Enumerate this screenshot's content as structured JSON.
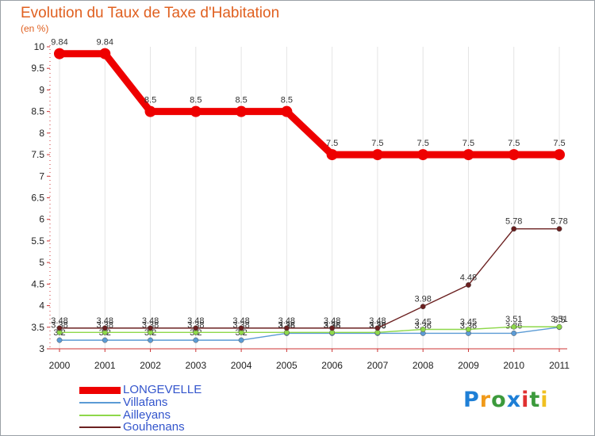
{
  "colors": {
    "title": "#e06020",
    "legend_text": "#3355cc"
  },
  "chart_data": {
    "type": "line",
    "title": "Evolution du Taux de Taxe d'Habitation",
    "subtitle": "(en %)",
    "categories": [
      "2000",
      "2001",
      "2002",
      "2003",
      "2004",
      "2005",
      "2006",
      "2007",
      "2008",
      "2009",
      "2010",
      "2011"
    ],
    "ylim": [
      3,
      10
    ],
    "yticks": [
      "3",
      "3.5",
      "4",
      "4.5",
      "5",
      "5.5",
      "6",
      "6.5",
      "7",
      "7.5",
      "8",
      "8.5",
      "9",
      "9.5",
      "10"
    ],
    "series": [
      {
        "name": "LONGEVELLE",
        "color": "#ee0000",
        "values": [
          9.84,
          9.84,
          8.5,
          8.5,
          8.5,
          8.5,
          7.5,
          7.5,
          7.5,
          7.5,
          7.5,
          7.5
        ],
        "labels": [
          "9.84",
          "9.84",
          "8.5",
          "8.5",
          "8.5",
          "8.5",
          "7.5",
          "7.5",
          "7.5",
          "7.5",
          "7.5",
          "7.5"
        ]
      },
      {
        "name": "Villafans",
        "color": "#5b9bd5",
        "values": [
          3.2,
          3.2,
          3.2,
          3.2,
          3.2,
          3.36,
          3.36,
          3.36,
          3.36,
          3.36,
          3.36,
          3.5
        ],
        "labels": [
          "3.2",
          "3.2",
          "3.2",
          "3.2",
          "3.2",
          "3.36",
          "3.36",
          "3.36",
          "3.36",
          "3.36",
          "3.36",
          "3.5"
        ]
      },
      {
        "name": "Ailleyans",
        "color": "#8ed84a",
        "values": [
          3.38,
          3.38,
          3.38,
          3.38,
          3.38,
          3.38,
          3.38,
          3.38,
          3.45,
          3.45,
          3.51,
          3.51
        ],
        "labels": [
          "3.38",
          "3.38",
          "3.38",
          "3.38",
          "3.38",
          "3.38",
          "3.38",
          "3.38",
          "3.45",
          "3.45",
          "3.51",
          "3.51"
        ]
      },
      {
        "name": "Gouhenans",
        "color": "#6b2020",
        "values": [
          3.48,
          3.48,
          3.48,
          3.48,
          3.48,
          3.48,
          3.48,
          3.48,
          3.98,
          4.48,
          5.78,
          5.78
        ],
        "labels": [
          "3.48",
          "3.48",
          "3.48",
          "3.48",
          "3.48",
          "3.48",
          "3.48",
          "3.48",
          "3.98",
          "4.48",
          "5.78",
          "5.78"
        ]
      }
    ]
  },
  "logo": {
    "letters": [
      "P",
      "r",
      "o",
      "x",
      "i",
      "t",
      "i"
    ],
    "colors": [
      "#1e7fd6",
      "#f09a1a",
      "#3c9a3c",
      "#1e7fd6",
      "#e03030",
      "#3c9a3c",
      "#f0c020"
    ]
  }
}
